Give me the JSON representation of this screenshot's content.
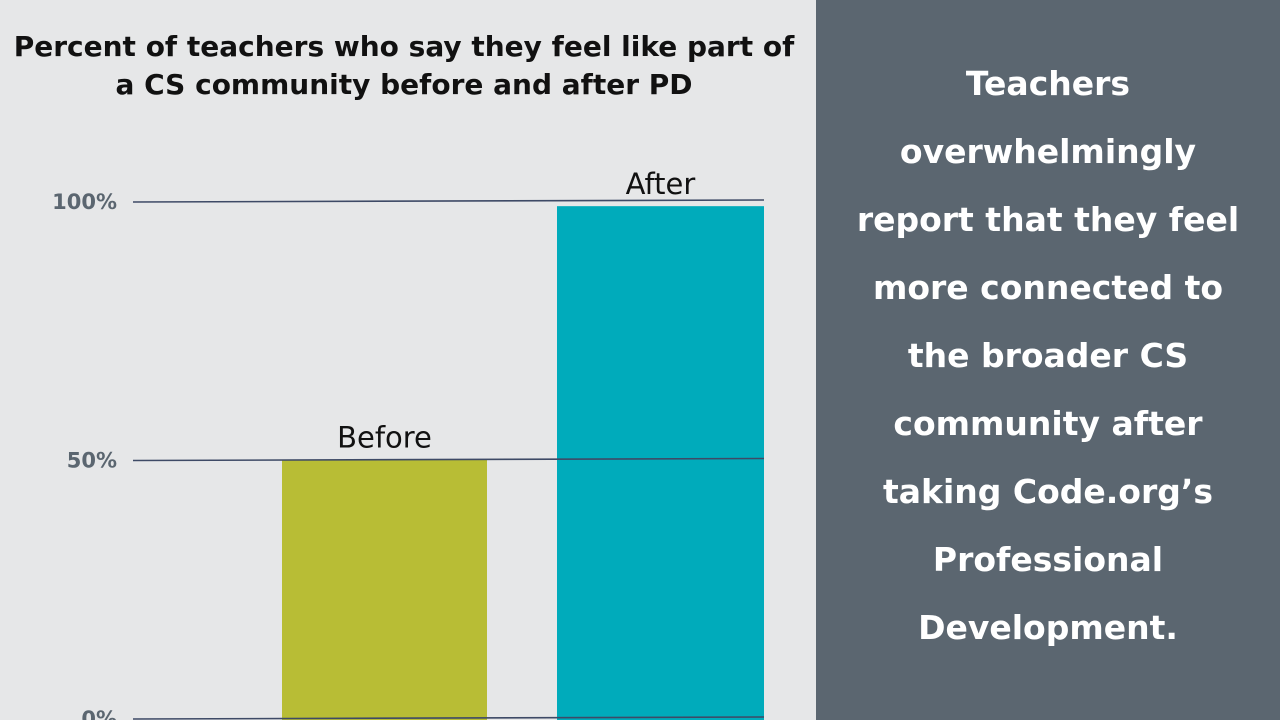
{
  "chart_data": {
    "type": "bar",
    "title_lines": [
      "Percent of teachers who say they feel like part of",
      "a CS community before and after PD"
    ],
    "categories": [
      "Before",
      "After"
    ],
    "values": [
      50,
      99
    ],
    "bar_colors": [
      "#b8bd35",
      "#00abbb"
    ],
    "ylim": [
      0,
      100
    ],
    "y_ticks": [
      {
        "value": 0,
        "label": "0%"
      },
      {
        "value": 50,
        "label": "50%"
      },
      {
        "value": 100,
        "label": "100%"
      }
    ],
    "grid": true,
    "xlabel": "",
    "ylabel": ""
  },
  "callout": {
    "lines": [
      "Teachers",
      "overwhelmingly",
      "report that they feel",
      "more connected to",
      "the broader CS",
      "community after",
      "taking Code.org’s",
      "Professional",
      "Development."
    ]
  },
  "colors": {
    "left_background": "#e6e7e8",
    "right_background": "#5b6670",
    "gridline": "#3e4a66",
    "tick_label": "#5b6670",
    "callout_text": "#ffffff"
  }
}
